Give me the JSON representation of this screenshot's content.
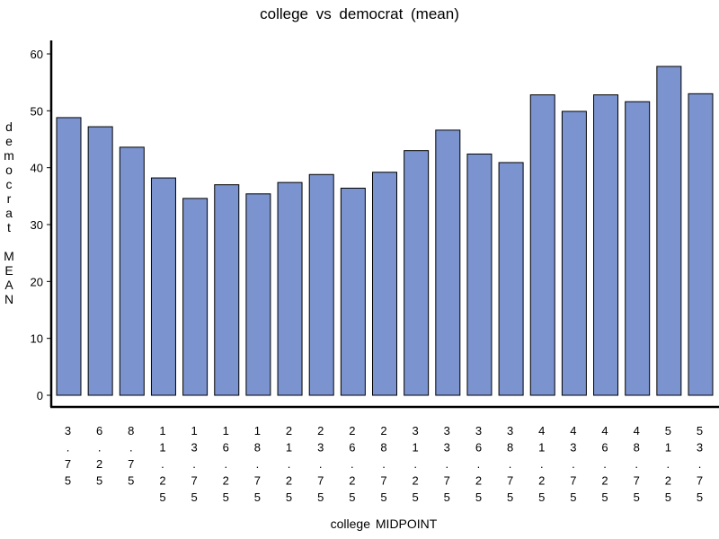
{
  "chart_data": {
    "type": "bar",
    "title": "college vs democrat (mean)",
    "xlabel": "college MIDPOINT",
    "ylabel": "democrat MEAN",
    "categories": [
      "3.75",
      "6.25",
      "8.75",
      "11.25",
      "13.75",
      "16.25",
      "18.75",
      "21.25",
      "23.75",
      "26.25",
      "28.75",
      "31.25",
      "33.75",
      "36.25",
      "38.75",
      "41.25",
      "43.75",
      "46.25",
      "48.75",
      "51.25",
      "53.75"
    ],
    "values": [
      48.8,
      47.2,
      43.6,
      38.2,
      34.6,
      37.0,
      35.4,
      37.4,
      38.8,
      36.4,
      39.2,
      43.0,
      46.6,
      42.4,
      40.9,
      52.8,
      49.9,
      52.8,
      51.6,
      57.8,
      53.0
    ],
    "yticks": [
      0,
      10,
      20,
      30,
      40,
      50,
      60
    ],
    "ylim": [
      0,
      60
    ],
    "grid": false,
    "colors": {
      "bar_fill": "#7b93cf",
      "bar_stroke": "#000000",
      "axis": "#000000"
    }
  }
}
